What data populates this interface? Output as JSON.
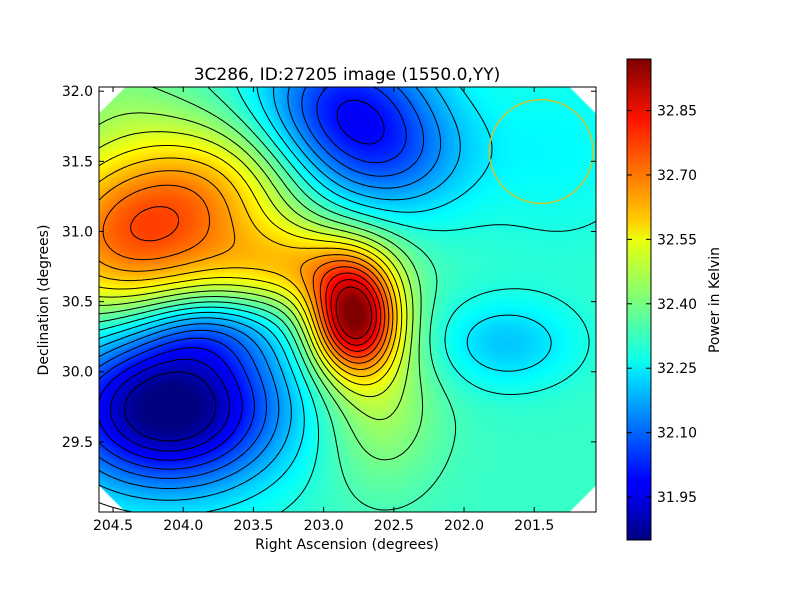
{
  "chart_data": {
    "type": "heatmap",
    "title": "3C286, ID:27205 image (1550.0,YY)",
    "xlabel": "Right Ascension (degrees)",
    "ylabel": "Declination (degrees)",
    "xlim": [
      204.6,
      201.06
    ],
    "ylim": [
      29.0,
      32.03
    ],
    "x_ticks": [
      "204.5",
      "204.0",
      "203.5",
      "203.0",
      "202.5",
      "202.0",
      "201.5"
    ],
    "y_ticks": [
      "29.5",
      "30.0",
      "30.5",
      "31.0",
      "31.5",
      "32.0"
    ],
    "colorbar": {
      "label": "Power in Kelvin",
      "range": [
        31.85,
        32.97
      ],
      "ticks": [
        "31.95",
        "32.10",
        "32.25",
        "32.40",
        "32.55",
        "32.70",
        "32.85"
      ],
      "colormap": "jet"
    },
    "contour_levels": [
      31.9,
      31.95,
      32.0,
      32.05,
      32.1,
      32.15,
      32.2,
      32.25,
      32.3,
      32.35,
      32.4,
      32.45,
      32.5,
      32.55,
      32.6,
      32.65,
      32.7,
      32.75,
      32.8,
      32.85,
      32.9
    ],
    "contour_color": "#000000",
    "base_value": 32.33,
    "components": [
      {
        "ra": 202.78,
        "dec": 30.38,
        "amp": 0.6,
        "sra": 0.22,
        "sdec": 0.28
      },
      {
        "ra": 203.15,
        "dec": 30.75,
        "amp": 0.22,
        "sra": 0.42,
        "sdec": 0.22
      },
      {
        "ra": 202.6,
        "dec": 29.75,
        "amp": 0.12,
        "sra": 0.3,
        "sdec": 0.4
      },
      {
        "ra": 204.35,
        "dec": 30.95,
        "amp": 0.38,
        "sra": 0.55,
        "sdec": 0.45
      },
      {
        "ra": 203.7,
        "dec": 31.35,
        "amp": 0.18,
        "sra": 0.5,
        "sdec": 0.35
      },
      {
        "ra": 204.1,
        "dec": 29.75,
        "amp": -0.52,
        "sra": 0.55,
        "sdec": 0.4
      },
      {
        "ra": 203.85,
        "dec": 30.3,
        "amp": -0.14,
        "sra": 0.35,
        "sdec": 0.2
      },
      {
        "ra": 202.85,
        "dec": 31.85,
        "amp": -0.32,
        "sra": 0.45,
        "sdec": 0.4
      },
      {
        "ra": 202.45,
        "dec": 31.5,
        "amp": -0.12,
        "sra": 0.4,
        "sdec": 0.3
      },
      {
        "ra": 201.7,
        "dec": 30.2,
        "amp": -0.12,
        "sra": 0.35,
        "sdec": 0.22
      },
      {
        "ra": 201.3,
        "dec": 31.6,
        "amp": -0.06,
        "sra": 0.45,
        "sdec": 0.5
      },
      {
        "ra": 204.5,
        "dec": 32.0,
        "amp": 0.05,
        "sra": 0.35,
        "sdec": 0.3
      }
    ],
    "beam_circle": {
      "ra": 201.45,
      "dec": 31.57,
      "radius_deg": 0.37,
      "color": "#c8c832"
    },
    "masked_corners": true
  }
}
